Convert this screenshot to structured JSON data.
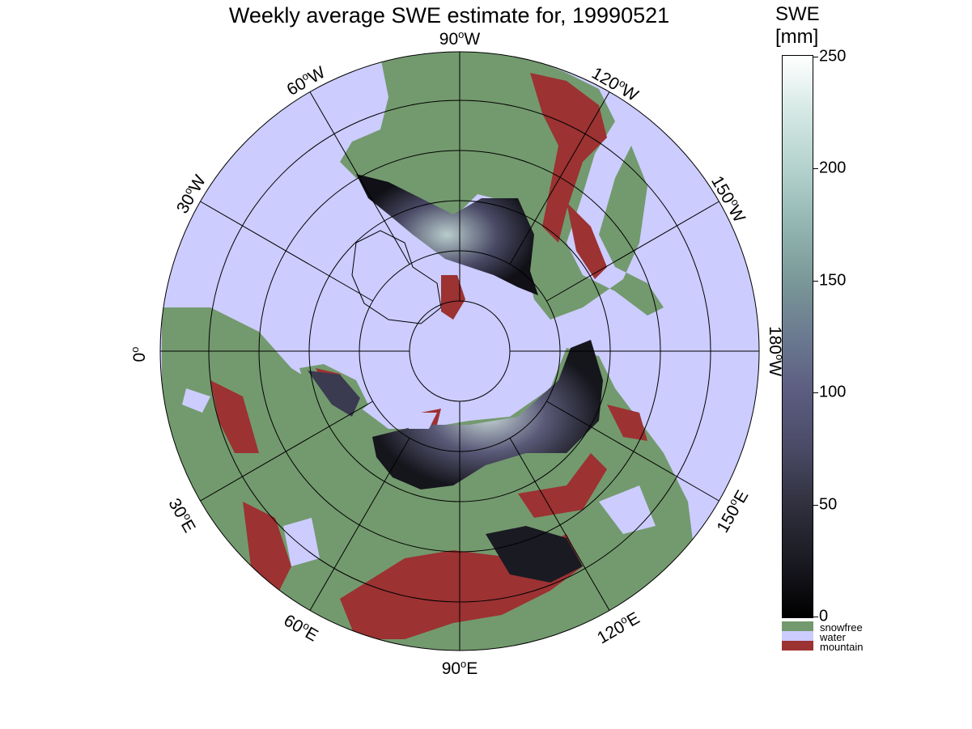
{
  "title": "Weekly average SWE estimate for, 19990521",
  "colorbar": {
    "title_line1": "SWE",
    "title_line2": "[mm]",
    "ticks": [
      "0",
      "50",
      "100",
      "150",
      "200",
      "250"
    ],
    "range": [
      0,
      250
    ],
    "colormap": "bone-like dark-to-white"
  },
  "legend": [
    {
      "label": "snowfree",
      "color": "#739a6e"
    },
    {
      "label": "water",
      "color": "#ccccff"
    },
    {
      "label": "mountain",
      "color": "#9c3232"
    }
  ],
  "longitude_labels": {
    "lon_90W": "90",
    "lon_120W": "120",
    "lon_150W": "150",
    "lon_180W": "180",
    "lon_150E": "150",
    "lon_120E": "120",
    "lon_90E": "90",
    "lon_60E": "60",
    "lon_30E": "30",
    "lon_0": "0",
    "lon_30W": "30",
    "lon_60W": "60",
    "deg_sign": "o",
    "west": "W",
    "east": "E"
  },
  "projection": "north polar stereographic",
  "colors": {
    "snowfree": "#739a6e",
    "water": "#ccccff",
    "mountain": "#9c3232",
    "grid": "#000000"
  }
}
